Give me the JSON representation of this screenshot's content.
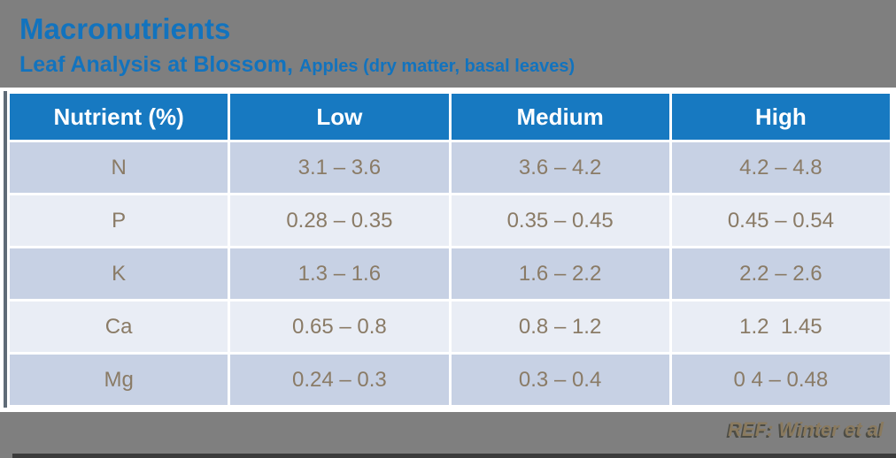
{
  "slide": {
    "title": "Macronutrients",
    "subtitle": "Leaf Analysis at Blossom, ",
    "subtitle_detail": "Apples (dry matter, basal leaves)",
    "reference": "REF: Winter et al"
  },
  "colors": {
    "background": "#7f7f7f",
    "title_blue": "#1273be",
    "header_blue": "#1779c1",
    "row_dark": "#c7d1e4",
    "row_light": "#e9edf5",
    "cell_text": "#8a7b66",
    "reference_text": "#8a7a5e",
    "table_border": "#ffffff"
  },
  "chart_data": {
    "type": "table",
    "title": "Macronutrients — Leaf Analysis at Blossom, Apples (dry matter, basal leaves)",
    "columns": [
      "Nutrient (%)",
      "Low",
      "Medium",
      "High"
    ],
    "rows": [
      {
        "cells": [
          "N",
          "3.1 – 3.6",
          "3.6 – 4.2",
          "4.2 – 4.8"
        ]
      },
      {
        "cells": [
          "P",
          "0.28 – 0.35",
          "0.35 – 0.45",
          "0.45 – 0.54"
        ]
      },
      {
        "cells": [
          "K",
          "1.3 – 1.6",
          "1.6 – 2.2",
          "2.2 – 2.6"
        ]
      },
      {
        "cells": [
          "Ca",
          "0.65 – 0.8",
          "0.8 – 1.2",
          "1.2  1.45"
        ]
      },
      {
        "cells": [
          "Mg",
          "0.24 – 0.3",
          "0.3 – 0.4",
          "0 4 – 0.48"
        ]
      }
    ]
  }
}
